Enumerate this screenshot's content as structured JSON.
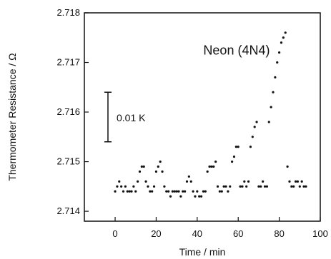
{
  "chart_data": {
    "type": "scatter",
    "xlabel": "Time / min",
    "ylabel": "Thermometer Resistance / Ω",
    "xlim": [
      -15,
      100
    ],
    "ylim": [
      2.7138,
      2.718
    ],
    "x_ticks": [
      "0",
      "20",
      "40",
      "60",
      "80",
      "100"
    ],
    "y_ticks": [
      "2.714",
      "2.715",
      "2.716",
      "2.717",
      "2.718"
    ],
    "grid": false,
    "annotations": {
      "sample_label": "Neon (4N4)",
      "scale_bar_label": "0.01 K"
    },
    "scale_bar": {
      "x": -3.5,
      "y_from": 2.7154,
      "y_to": 2.7164
    },
    "series": [
      {
        "marker_color": "#111111",
        "x": [
          0,
          1,
          2,
          3,
          4,
          5,
          6,
          7,
          8,
          9,
          10,
          11,
          12,
          13,
          14,
          15,
          16,
          17,
          18,
          19,
          20,
          21,
          22,
          23,
          24,
          25,
          26,
          27,
          28,
          29,
          30,
          31,
          32,
          33,
          34,
          35,
          36,
          37,
          38,
          39,
          40,
          41,
          42,
          43,
          44,
          45,
          46,
          47,
          48,
          49,
          50,
          51,
          52,
          53,
          54,
          55,
          56,
          57,
          58,
          59,
          60,
          61,
          62,
          63,
          64,
          65,
          66,
          67,
          68,
          69,
          70,
          71,
          72,
          73,
          74,
          75,
          76,
          77,
          78,
          79,
          80,
          81,
          82,
          83,
          84,
          85,
          86,
          87,
          88,
          89,
          90,
          91,
          92,
          93
        ],
        "y": [
          2.7144,
          2.7145,
          2.7146,
          2.7145,
          2.7144,
          2.7145,
          2.7144,
          2.7144,
          2.7144,
          2.7145,
          2.7144,
          2.7146,
          2.7148,
          2.7149,
          2.7149,
          2.7146,
          2.7145,
          2.7144,
          2.7144,
          2.7145,
          2.7148,
          2.7149,
          2.715,
          2.7148,
          2.7145,
          2.7144,
          2.7144,
          2.7143,
          2.7144,
          2.7144,
          2.7144,
          2.7144,
          2.7143,
          2.7144,
          2.7144,
          2.7146,
          2.7147,
          2.7146,
          2.7144,
          2.7143,
          2.7144,
          2.7143,
          2.7143,
          2.7144,
          2.7144,
          2.7148,
          2.7149,
          2.7149,
          2.7149,
          2.715,
          2.7145,
          2.7144,
          2.7144,
          2.7145,
          2.7145,
          2.7144,
          2.7145,
          2.715,
          2.7151,
          2.7153,
          2.7153,
          2.7145,
          2.7145,
          2.7146,
          2.7145,
          2.7146,
          2.7153,
          2.7155,
          2.7157,
          2.7158,
          2.7145,
          2.7145,
          2.7146,
          2.7145,
          2.7145,
          2.7158,
          2.7161,
          2.7164,
          2.7167,
          2.717,
          2.7172,
          2.7174,
          2.7175,
          2.7176,
          2.7149,
          2.7146,
          2.7145,
          2.7145,
          2.7146,
          2.7146,
          2.7145,
          2.7146,
          2.7145,
          2.7145
        ]
      }
    ]
  }
}
